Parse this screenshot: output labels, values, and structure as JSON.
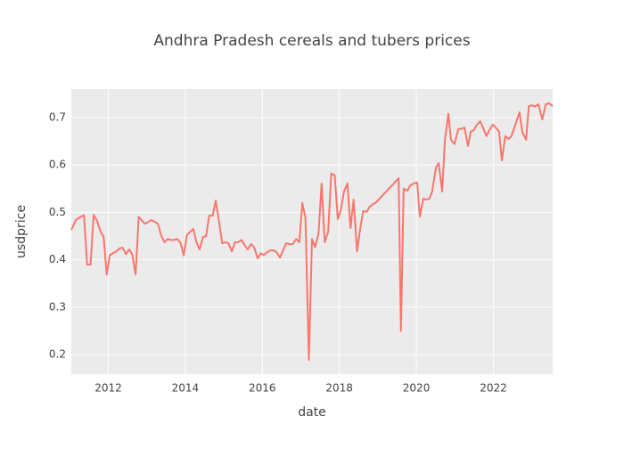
{
  "chart_data": {
    "type": "line",
    "title": "Andhra Pradesh cereals and tubers prices",
    "x_label": "date",
    "y_label": "usdprice",
    "x": [
      2011.04,
      2011.16,
      2011.27,
      2011.37,
      2011.45,
      2011.54,
      2011.62,
      2011.71,
      2011.8,
      2011.88,
      2011.96,
      2012.04,
      2012.12,
      2012.21,
      2012.29,
      2012.37,
      2012.46,
      2012.54,
      2012.62,
      2012.71,
      2012.79,
      2012.88,
      2012.96,
      2013.04,
      2013.12,
      2013.21,
      2013.29,
      2013.37,
      2013.46,
      2013.54,
      2013.62,
      2013.71,
      2013.79,
      2013.88,
      2013.96,
      2014.04,
      2014.12,
      2014.21,
      2014.29,
      2014.37,
      2014.46,
      2014.54,
      2014.62,
      2014.71,
      2014.79,
      2014.88,
      2014.96,
      2015.04,
      2015.12,
      2015.21,
      2015.29,
      2015.37,
      2015.46,
      2015.54,
      2015.62,
      2015.71,
      2015.79,
      2015.88,
      2015.96,
      2016.04,
      2016.12,
      2016.21,
      2016.29,
      2016.37,
      2016.46,
      2016.54,
      2016.62,
      2016.71,
      2016.79,
      2016.88,
      2016.96,
      2017.04,
      2017.12,
      2017.21,
      2017.29,
      2017.37,
      2017.46,
      2017.54,
      2017.62,
      2017.71,
      2017.79,
      2017.88,
      2017.96,
      2018.04,
      2018.12,
      2018.21,
      2018.29,
      2018.37,
      2018.46,
      2018.54,
      2018.62,
      2018.71,
      2018.79,
      2018.88,
      2018.94,
      2019.54,
      2019.6,
      2019.67,
      2019.77,
      2019.84,
      2019.93,
      2020.02,
      2020.09,
      2020.18,
      2020.25,
      2020.34,
      2020.41,
      2020.51,
      2020.58,
      2020.67,
      2020.74,
      2020.83,
      2020.9,
      2020.99,
      2021.09,
      2021.16,
      2021.25,
      2021.34,
      2021.41,
      2021.5,
      2021.57,
      2021.66,
      2021.73,
      2021.82,
      2021.9,
      2021.99,
      2022.06,
      2022.15,
      2022.22,
      2022.31,
      2022.4,
      2022.47,
      2022.57,
      2022.68,
      2022.75,
      2022.85,
      2022.92,
      2023.01,
      2023.08,
      2023.17,
      2023.27,
      2023.36,
      2023.45,
      2023.54
    ],
    "series": [
      {
        "name": "usdprice",
        "color": "#F8766D",
        "values": [
          0.463,
          0.484,
          0.49,
          0.494,
          0.39,
          0.39,
          0.495,
          0.482,
          0.46,
          0.448,
          0.369,
          0.41,
          0.414,
          0.418,
          0.424,
          0.426,
          0.412,
          0.422,
          0.412,
          0.369,
          0.491,
          0.482,
          0.476,
          0.48,
          0.484,
          0.48,
          0.476,
          0.452,
          0.437,
          0.444,
          0.442,
          0.442,
          0.444,
          0.435,
          0.409,
          0.452,
          0.459,
          0.465,
          0.437,
          0.422,
          0.448,
          0.45,
          0.493,
          0.493,
          0.525,
          0.478,
          0.435,
          0.437,
          0.435,
          0.418,
          0.437,
          0.437,
          0.442,
          0.431,
          0.422,
          0.433,
          0.426,
          0.403,
          0.414,
          0.41,
          0.416,
          0.42,
          0.42,
          0.416,
          0.405,
          0.42,
          0.435,
          0.433,
          0.433,
          0.444,
          0.437,
          0.52,
          0.488,
          0.189,
          0.444,
          0.427,
          0.456,
          0.561,
          0.437,
          0.459,
          0.582,
          0.578,
          0.486,
          0.506,
          0.544,
          0.561,
          0.467,
          0.527,
          0.418,
          0.465,
          0.503,
          0.501,
          0.512,
          0.518,
          0.52,
          0.572,
          0.25,
          0.55,
          0.546,
          0.557,
          0.561,
          0.563,
          0.491,
          0.529,
          0.527,
          0.529,
          0.544,
          0.595,
          0.604,
          0.544,
          0.651,
          0.708,
          0.653,
          0.644,
          0.676,
          0.676,
          0.679,
          0.64,
          0.67,
          0.674,
          0.685,
          0.692,
          0.679,
          0.661,
          0.674,
          0.685,
          0.679,
          0.67,
          0.61,
          0.661,
          0.655,
          0.661,
          0.685,
          0.711,
          0.67,
          0.653,
          0.724,
          0.726,
          0.723,
          0.728,
          0.696,
          0.728,
          0.73,
          0.724
        ]
      }
    ],
    "xlim": [
      2011.04,
      2023.54
    ],
    "xticks": [
      2012,
      2014,
      2016,
      2018,
      2020,
      2022
    ],
    "ylim": [
      0.159,
      0.76
    ],
    "yticks": [
      0.2,
      0.3,
      0.4,
      0.5,
      0.6,
      0.7
    ],
    "grid": true
  }
}
